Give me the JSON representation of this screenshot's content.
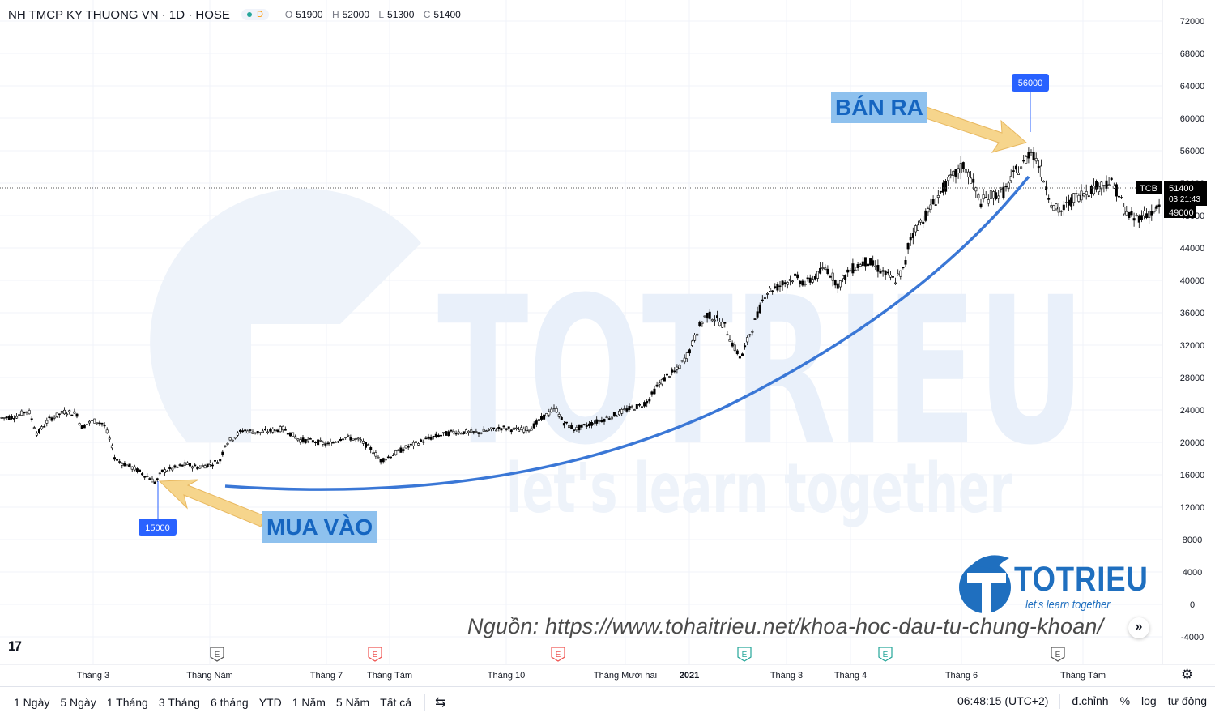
{
  "header": {
    "symbol": "NH TMCP KY THUONG VN · 1D · HOSE",
    "interval_badge": "D",
    "ohlc": {
      "o_label": "O",
      "o": "51900",
      "h_label": "H",
      "h": "52000",
      "l_label": "L",
      "l": "51300",
      "c_label": "C",
      "c": "51400"
    }
  },
  "annotations": {
    "buy": "MUA VÀO",
    "sell": "BÁN RA",
    "low_badge": "15000",
    "high_badge": "56000"
  },
  "price_tags": {
    "ticker": "TCB",
    "last": "51400",
    "countdown": "03:21:43",
    "level": "49000"
  },
  "watermark": {
    "main": "TOTRIEU",
    "sub": "let's learn together"
  },
  "logo": {
    "text": "TOTRIEU",
    "sub": "let's learn together"
  },
  "source": "Nguồn: https://www.tohaitrieu.net/khoa-hoc-dau-tu-chung-khoan/",
  "source_button": "»",
  "tv_logo": "17",
  "bottom": {
    "ranges": [
      "1 Ngày",
      "5 Ngày",
      "1 Tháng",
      "3 Tháng",
      "6 tháng",
      "YTD",
      "1 Năm",
      "5 Năm",
      "Tất cả"
    ],
    "time": "06:48:15 (UTC+2)",
    "adjust": "đ.chỉnh",
    "percent": "%",
    "log": "log",
    "auto": "tự động"
  },
  "colors": {
    "accent": "#1f6fbf",
    "curve": "#3a77d6",
    "arrow": "#f6d58c",
    "badge": "#2962ff",
    "green": "#26a69a",
    "red": "#ef5350"
  },
  "chart_data": {
    "type": "candlestick",
    "y_ticks": [
      72000,
      68000,
      64000,
      60000,
      56000,
      52000,
      48000,
      44000,
      40000,
      36000,
      32000,
      28000,
      24000,
      20000,
      16000,
      12000,
      8000,
      4000,
      0,
      -4000
    ],
    "ylim": [
      -6000,
      74000
    ],
    "x_ticks": [
      "Tháng 3",
      "Tháng Năm",
      "Tháng 7",
      "Tháng Tám",
      "Tháng 10",
      "Tháng Mười hai",
      "2021",
      "Tháng 3",
      "Tháng 4",
      "Tháng 6",
      "Tháng Tám"
    ],
    "events": [
      {
        "type": "E",
        "color": "#555"
      },
      {
        "type": "E",
        "color": "#ef5350"
      },
      {
        "type": "E",
        "color": "#ef5350"
      },
      {
        "type": "E",
        "color": "#26a69a"
      },
      {
        "type": "E",
        "color": "#26a69a"
      },
      {
        "type": "E",
        "color": "#555"
      }
    ],
    "price_path": [
      [
        0,
        23000
      ],
      [
        20,
        23200
      ],
      [
        35,
        24000
      ],
      [
        46,
        21000
      ],
      [
        60,
        22800
      ],
      [
        80,
        23800
      ],
      [
        95,
        23500
      ],
      [
        100,
        21800
      ],
      [
        115,
        22700
      ],
      [
        128,
        22300
      ],
      [
        135,
        20500
      ],
      [
        142,
        18000
      ],
      [
        150,
        17500
      ],
      [
        165,
        16800
      ],
      [
        175,
        16200
      ],
      [
        185,
        15600
      ],
      [
        192,
        15000
      ],
      [
        200,
        16400
      ],
      [
        215,
        16800
      ],
      [
        230,
        17300
      ],
      [
        245,
        16900
      ],
      [
        262,
        17400
      ],
      [
        272,
        17800
      ],
      [
        278,
        19800
      ],
      [
        300,
        21500
      ],
      [
        320,
        21200
      ],
      [
        350,
        21700
      ],
      [
        370,
        20300
      ],
      [
        390,
        20100
      ],
      [
        405,
        19700
      ],
      [
        425,
        20700
      ],
      [
        445,
        20200
      ],
      [
        460,
        19000
      ],
      [
        470,
        17800
      ],
      [
        480,
        18200
      ],
      [
        500,
        19300
      ],
      [
        530,
        20500
      ],
      [
        560,
        21300
      ],
      [
        590,
        21200
      ],
      [
        620,
        21800
      ],
      [
        640,
        21500
      ],
      [
        655,
        21700
      ],
      [
        672,
        23200
      ],
      [
        686,
        24200
      ],
      [
        695,
        22500
      ],
      [
        710,
        21600
      ],
      [
        730,
        22300
      ],
      [
        755,
        23200
      ],
      [
        775,
        24100
      ],
      [
        790,
        24500
      ],
      [
        800,
        25100
      ],
      [
        812,
        27000
      ],
      [
        825,
        28300
      ],
      [
        835,
        28800
      ],
      [
        850,
        31000
      ],
      [
        862,
        34000
      ],
      [
        872,
        35800
      ],
      [
        885,
        35200
      ],
      [
        895,
        34300
      ],
      [
        905,
        32000
      ],
      [
        915,
        30300
      ],
      [
        925,
        33200
      ],
      [
        935,
        35600
      ],
      [
        945,
        38500
      ],
      [
        960,
        39200
      ],
      [
        980,
        40400
      ],
      [
        995,
        39600
      ],
      [
        1010,
        40700
      ],
      [
        1020,
        41600
      ],
      [
        1035,
        39400
      ],
      [
        1050,
        41300
      ],
      [
        1070,
        42400
      ],
      [
        1085,
        41400
      ],
      [
        1095,
        40600
      ],
      [
        1105,
        40000
      ],
      [
        1117,
        41500
      ],
      [
        1122,
        44800
      ],
      [
        1130,
        46300
      ],
      [
        1145,
        48300
      ],
      [
        1160,
        50700
      ],
      [
        1175,
        52600
      ],
      [
        1190,
        54200
      ],
      [
        1200,
        52300
      ],
      [
        1210,
        49600
      ],
      [
        1225,
        50500
      ],
      [
        1240,
        50900
      ],
      [
        1255,
        53500
      ],
      [
        1265,
        54500
      ],
      [
        1272,
        56200
      ],
      [
        1280,
        54900
      ],
      [
        1290,
        52100
      ],
      [
        1300,
        49000
      ],
      [
        1310,
        48500
      ],
      [
        1325,
        50100
      ],
      [
        1340,
        50900
      ],
      [
        1355,
        51600
      ],
      [
        1370,
        52200
      ],
      [
        1380,
        50900
      ],
      [
        1390,
        48300
      ],
      [
        1400,
        47600
      ],
      [
        1415,
        48200
      ],
      [
        1425,
        48600
      ],
      [
        1432,
        49100
      ]
    ]
  }
}
